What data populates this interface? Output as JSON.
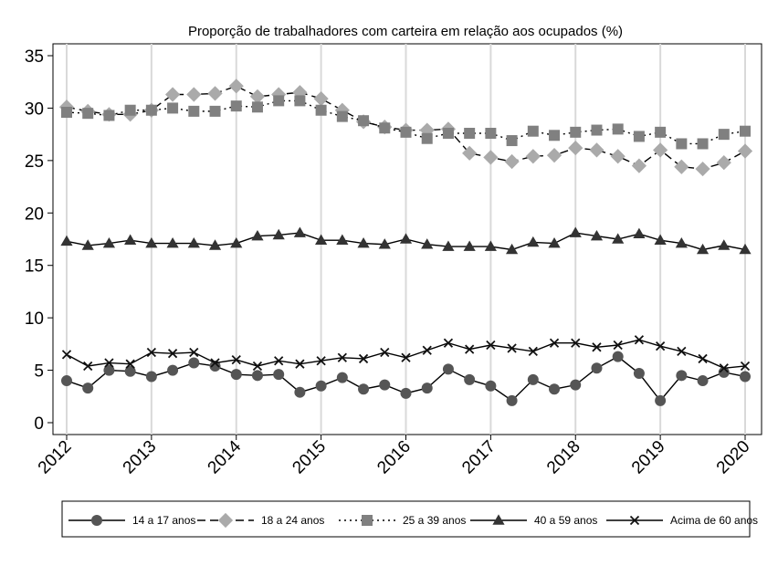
{
  "chart_data": {
    "type": "line",
    "title": "Proporção de trabalhadores com carteira em relação aos ocupados (%)",
    "xlabel": "",
    "ylabel": "",
    "xlim": [
      2012,
      2020
    ],
    "ylim": [
      0,
      35
    ],
    "yticks": [
      0,
      5,
      10,
      15,
      20,
      25,
      30,
      35
    ],
    "xticks": [
      "2012",
      "2013",
      "2014",
      "2015",
      "2016",
      "2017",
      "2018",
      "2019",
      "2020"
    ],
    "grid": "vertical lines at each year",
    "legend_position": "bottom",
    "x": [
      2012.0,
      2012.25,
      2012.5,
      2012.75,
      2013.0,
      2013.25,
      2013.5,
      2013.75,
      2014.0,
      2014.25,
      2014.5,
      2014.75,
      2015.0,
      2015.25,
      2015.5,
      2015.75,
      2016.0,
      2016.25,
      2016.5,
      2016.75,
      2017.0,
      2017.25,
      2017.5,
      2017.75,
      2018.0,
      2018.25,
      2018.5,
      2018.75,
      2019.0,
      2019.25,
      2019.5,
      2019.75,
      2020.0
    ],
    "series": [
      {
        "name": "14 a 17 anos",
        "marker": "circle",
        "dash": "",
        "color": "#555555",
        "values": [
          4.0,
          3.3,
          5.0,
          4.9,
          4.4,
          5.0,
          5.7,
          5.4,
          4.6,
          4.5,
          4.6,
          2.9,
          3.5,
          4.3,
          3.2,
          3.6,
          2.8,
          3.3,
          5.1,
          4.1,
          3.5,
          2.1,
          4.1,
          3.2,
          3.6,
          5.2,
          6.3,
          4.7,
          2.1,
          4.5,
          4.0,
          4.8,
          4.4
        ]
      },
      {
        "name": "18 a 24 anos",
        "marker": "diamond",
        "dash": "9,5",
        "color": "#aaaaaa",
        "values": [
          30.1,
          29.7,
          29.4,
          29.4,
          29.8,
          31.3,
          31.3,
          31.4,
          32.1,
          31.1,
          31.3,
          31.5,
          30.9,
          29.8,
          28.7,
          28.2,
          27.9,
          27.9,
          28.0,
          25.7,
          25.3,
          24.9,
          25.4,
          25.5,
          26.2,
          26.0,
          25.4,
          24.5,
          26.0,
          24.4,
          24.2,
          24.8,
          25.9
        ]
      },
      {
        "name": "25 a 39 anos",
        "marker": "square",
        "dash": "2,4",
        "color": "#808080",
        "values": [
          29.6,
          29.5,
          29.3,
          29.8,
          29.8,
          30.0,
          29.7,
          29.7,
          30.2,
          30.1,
          30.7,
          30.7,
          29.8,
          29.2,
          28.8,
          28.1,
          27.7,
          27.1,
          27.6,
          27.6,
          27.6,
          26.9,
          27.8,
          27.4,
          27.7,
          27.9,
          28.0,
          27.3,
          27.7,
          26.6,
          26.6,
          27.5,
          27.8
        ]
      },
      {
        "name": "40 a 59 anos",
        "marker": "triangle",
        "dash": "",
        "color": "#333333",
        "values": [
          17.3,
          16.9,
          17.1,
          17.4,
          17.1,
          17.1,
          17.1,
          16.9,
          17.1,
          17.8,
          17.9,
          18.1,
          17.4,
          17.4,
          17.1,
          17.0,
          17.5,
          17.0,
          16.8,
          16.8,
          16.8,
          16.5,
          17.2,
          17.1,
          18.1,
          17.8,
          17.5,
          18.0,
          17.4,
          17.1,
          16.5,
          16.9,
          16.5
        ]
      },
      {
        "name": "Acima de 60 anos",
        "marker": "x",
        "dash": "",
        "color": "#111111",
        "values": [
          6.5,
          5.4,
          5.7,
          5.6,
          6.7,
          6.6,
          6.7,
          5.7,
          6.0,
          5.4,
          5.9,
          5.6,
          5.9,
          6.2,
          6.1,
          6.7,
          6.2,
          6.9,
          7.6,
          7.0,
          7.4,
          7.1,
          6.8,
          7.6,
          7.6,
          7.2,
          7.4,
          7.9,
          7.3,
          6.8,
          6.1,
          5.2,
          5.4
        ]
      }
    ]
  }
}
